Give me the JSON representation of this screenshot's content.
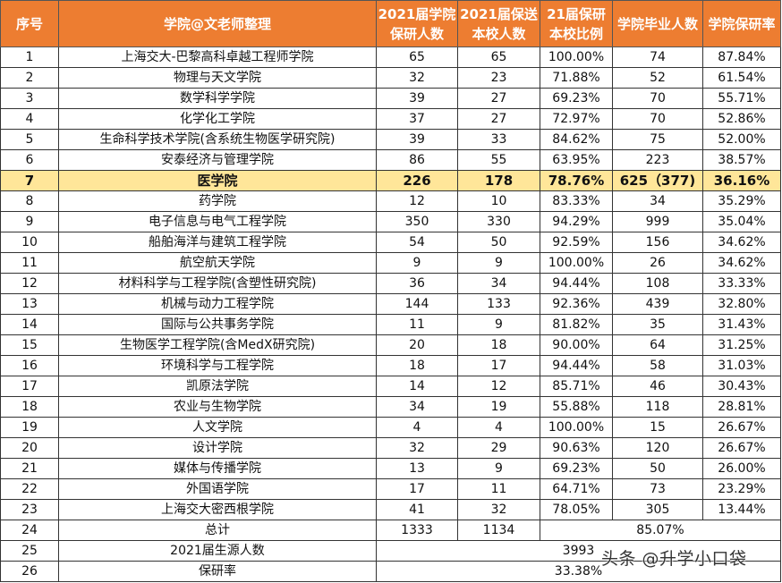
{
  "headers": [
    "序号",
    "学院@文老师整理",
    "2021届学院保研人数",
    "2021届保送本校人数",
    "21届保研本校比例",
    "学院毕业人数",
    "学院保研率"
  ],
  "rows": [
    [
      "1",
      "上海交大-巴黎高科卓越工程师学院",
      "65",
      "65",
      "100.00%",
      "74",
      "87.84%"
    ],
    [
      "2",
      "物理与天文学院",
      "32",
      "23",
      "71.88%",
      "52",
      "61.54%"
    ],
    [
      "3",
      "数学科学学院",
      "39",
      "27",
      "69.23%",
      "70",
      "55.71%"
    ],
    [
      "4",
      "化学化工学院",
      "37",
      "27",
      "72.97%",
      "70",
      "52.86%"
    ],
    [
      "5",
      "生命科学技术学院(含系统生物医学研究院)",
      "39",
      "33",
      "84.62%",
      "75",
      "52.00%"
    ],
    [
      "6",
      "安泰经济与管理学院",
      "86",
      "55",
      "63.95%",
      "223",
      "38.57%"
    ],
    [
      "7",
      "医学院",
      "226",
      "178",
      "78.76%",
      "625（377)",
      "36.16%"
    ],
    [
      "8",
      "药学院",
      "12",
      "10",
      "83.33%",
      "34",
      "35.29%"
    ],
    [
      "9",
      "电子信息与电气工程学院",
      "350",
      "330",
      "94.29%",
      "999",
      "35.04%"
    ],
    [
      "10",
      "船舶海洋与建筑工程学院",
      "54",
      "50",
      "92.59%",
      "156",
      "34.62%"
    ],
    [
      "11",
      "航空航天学院",
      "9",
      "9",
      "100.00%",
      "26",
      "34.62%"
    ],
    [
      "12",
      "材料科学与工程学院(含塑性研究院)",
      "36",
      "34",
      "94.44%",
      "108",
      "33.33%"
    ],
    [
      "13",
      "机械与动力工程学院",
      "144",
      "133",
      "92.36%",
      "439",
      "32.80%"
    ],
    [
      "14",
      "国际与公共事务学院",
      "11",
      "9",
      "81.82%",
      "35",
      "31.43%"
    ],
    [
      "15",
      "生物医学工程学院(含MedX研究院)",
      "20",
      "18",
      "90.00%",
      "64",
      "31.25%"
    ],
    [
      "16",
      "环境科学与工程学院",
      "18",
      "17",
      "94.44%",
      "58",
      "31.03%"
    ],
    [
      "17",
      "凯原法学院",
      "14",
      "12",
      "85.71%",
      "46",
      "30.43%"
    ],
    [
      "18",
      "农业与生物学院",
      "34",
      "19",
      "55.88%",
      "118",
      "28.81%"
    ],
    [
      "19",
      "人文学院",
      "4",
      "4",
      "100.00%",
      "15",
      "26.67%"
    ],
    [
      "20",
      "设计学院",
      "32",
      "29",
      "90.63%",
      "120",
      "26.67%"
    ],
    [
      "21",
      "媒体与传播学院",
      "13",
      "9",
      "69.23%",
      "50",
      "26.00%"
    ],
    [
      "22",
      "外国语学院",
      "17",
      "11",
      "64.71%",
      "73",
      "23.29%"
    ],
    [
      "23",
      "上海交大密西根学院",
      "41",
      "32",
      "78.05%",
      "305",
      "13.44%"
    ]
  ],
  "total": {
    "no": "24",
    "label": "总计",
    "a": "1333",
    "b": "1134",
    "ratio": "85.07%"
  },
  "source": {
    "no": "25",
    "label": "2021届生源人数",
    "value": "3993"
  },
  "rate": {
    "no": "26",
    "label": "保研率",
    "value": "33.38%"
  },
  "highlight_row": 6,
  "watermark": "头条 @升学小口袋",
  "colors": {
    "header": "#ED7D31",
    "highlight": "#FFE699"
  }
}
